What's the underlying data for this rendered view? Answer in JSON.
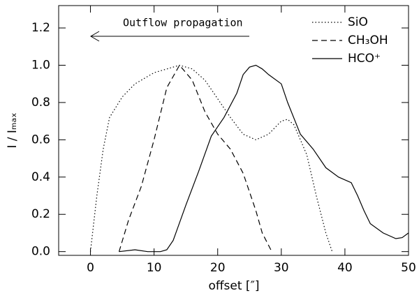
{
  "chart_data": {
    "type": "line",
    "x_label": "offset [″]",
    "y_label": "I / Iₘₐₓ",
    "annotation": "Outflow propagation",
    "xlim": [
      -5,
      50
    ],
    "ylim": [
      -0.02,
      1.32
    ],
    "xticks": [
      0,
      10,
      20,
      30,
      40,
      50
    ],
    "yticks": [
      {
        "value": 0,
        "label": "0.0"
      },
      0.2,
      0.4,
      0.6,
      0.8,
      {
        "value": 1,
        "label": "1.0"
      },
      1.2
    ],
    "legend": "top-right",
    "series": [
      {
        "name": "SiO",
        "color": "#000000",
        "dash": "1.5 3",
        "x": [
          0,
          1,
          2,
          3,
          5,
          7,
          10,
          14,
          16,
          18,
          20,
          22,
          24,
          26,
          28,
          30,
          31,
          32,
          34,
          35.5,
          37,
          38
        ],
        "values": [
          0,
          0.3,
          0.55,
          0.72,
          0.83,
          0.9,
          0.96,
          1.0,
          0.98,
          0.92,
          0.82,
          0.72,
          0.63,
          0.6,
          0.63,
          0.7,
          0.71,
          0.68,
          0.52,
          0.3,
          0.1,
          0
        ]
      },
      {
        "name": "CH₃OH",
        "color": "#000000",
        "dash": "8 5",
        "x": [
          4.5,
          6,
          8,
          10,
          12,
          14,
          16,
          18,
          20,
          22,
          24,
          26,
          27,
          28.5
        ],
        "values": [
          0,
          0.17,
          0.35,
          0.6,
          0.88,
          1.0,
          0.92,
          0.75,
          0.63,
          0.55,
          0.42,
          0.22,
          0.1,
          0
        ]
      },
      {
        "name": "HCO⁺",
        "color": "#000000",
        "dash": "none",
        "x": [
          4.5,
          7,
          9,
          11,
          12,
          13,
          15,
          17,
          19,
          21,
          23,
          24,
          25,
          26,
          27,
          28,
          30,
          31,
          33,
          35,
          37,
          39,
          41,
          42,
          43,
          44,
          46,
          48,
          49,
          50
        ],
        "values": [
          0,
          0.01,
          0,
          0,
          0.01,
          0.06,
          0.25,
          0.43,
          0.62,
          0.72,
          0.85,
          0.95,
          0.99,
          1.0,
          0.98,
          0.95,
          0.9,
          0.8,
          0.63,
          0.55,
          0.45,
          0.4,
          0.37,
          0.3,
          0.22,
          0.15,
          0.1,
          0.07,
          0.075,
          0.1
        ]
      }
    ]
  }
}
